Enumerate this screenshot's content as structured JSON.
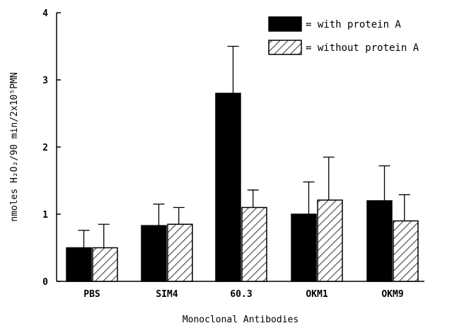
{
  "chart_data": {
    "type": "bar",
    "categories": [
      "PBS",
      "SIM4",
      "60.3",
      "OKM1",
      "OKM9"
    ],
    "series": [
      {
        "name": "= with protein A",
        "fill": "solid",
        "color": "#000000",
        "values": [
          0.5,
          0.83,
          2.8,
          1.0,
          1.2
        ],
        "errors": [
          0.26,
          0.32,
          0.7,
          0.48,
          0.52
        ]
      },
      {
        "name": "= without protein A",
        "fill": "hatched",
        "color": "#000000",
        "values": [
          0.5,
          0.85,
          1.1,
          1.21,
          0.9
        ],
        "errors": [
          0.35,
          0.25,
          0.26,
          0.64,
          0.39
        ]
      }
    ],
    "xlabel": "Monoclonal Antibodies",
    "ylabel": "nmoles H₂O₂/90 min/2x10⁵PMN",
    "ylim": [
      0,
      4
    ],
    "yticks": [
      "0",
      "1",
      "2",
      "3",
      "4"
    ],
    "grid": false,
    "legend_position": "top-right"
  }
}
